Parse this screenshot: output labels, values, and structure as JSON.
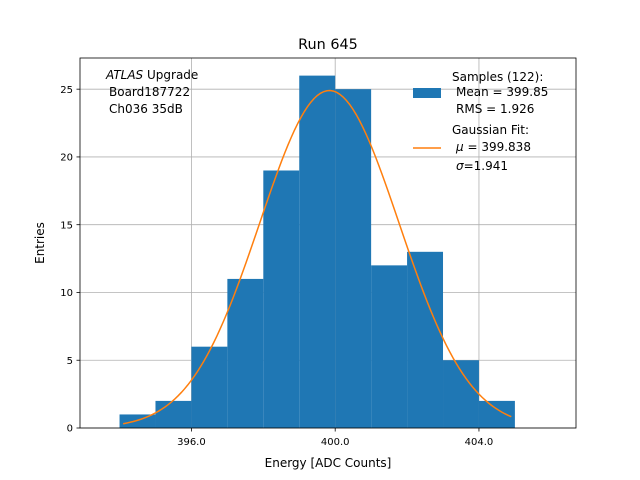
{
  "chart_data": {
    "type": "bar",
    "title": "Run 645",
    "xlabel": "Energy [ADC Counts]",
    "ylabel": "Entries",
    "xlim": [
      392.9,
      406.7
    ],
    "ylim": [
      0,
      27.3
    ],
    "x_ticks": [
      396,
      400,
      404
    ],
    "x_tick_labels": [
      "396.0",
      "400.0",
      "404.0"
    ],
    "y_ticks": [
      0,
      5,
      10,
      15,
      20,
      25
    ],
    "y_tick_labels": [
      "0",
      "5",
      "10",
      "15",
      "20",
      "25"
    ],
    "grid": true,
    "histogram": {
      "name": "Samples (122):",
      "color": "#1f77b4",
      "bin_edges": [
        394,
        395,
        396,
        397,
        398,
        399,
        400,
        401,
        402,
        403,
        404,
        405
      ],
      "values": [
        1,
        2,
        6,
        11,
        19,
        26,
        25,
        12,
        13,
        5,
        2
      ]
    },
    "fit": {
      "name": "Gaussian Fit:",
      "color": "#ff7f0e",
      "mu": 399.838,
      "sigma": 1.941,
      "amplitude": 24.9,
      "x_range": [
        394.1,
        404.9
      ]
    },
    "annotation": {
      "italic": "ATLAS",
      "line1_rest": " Upgrade",
      "line2": "Board187722",
      "line3": "Ch036 35dB"
    },
    "legend": {
      "position": "top-right",
      "samples_title": "Samples (122):",
      "samples_mean": "Mean = 399.85",
      "samples_rms": "RMS = 1.926",
      "fit_title": "Gaussian Fit:",
      "fit_mu_symbol": "μ",
      "fit_mu_rest": " = 399.838",
      "fit_sigma_symbol": "σ",
      "fit_sigma_rest": "=1.941"
    }
  }
}
